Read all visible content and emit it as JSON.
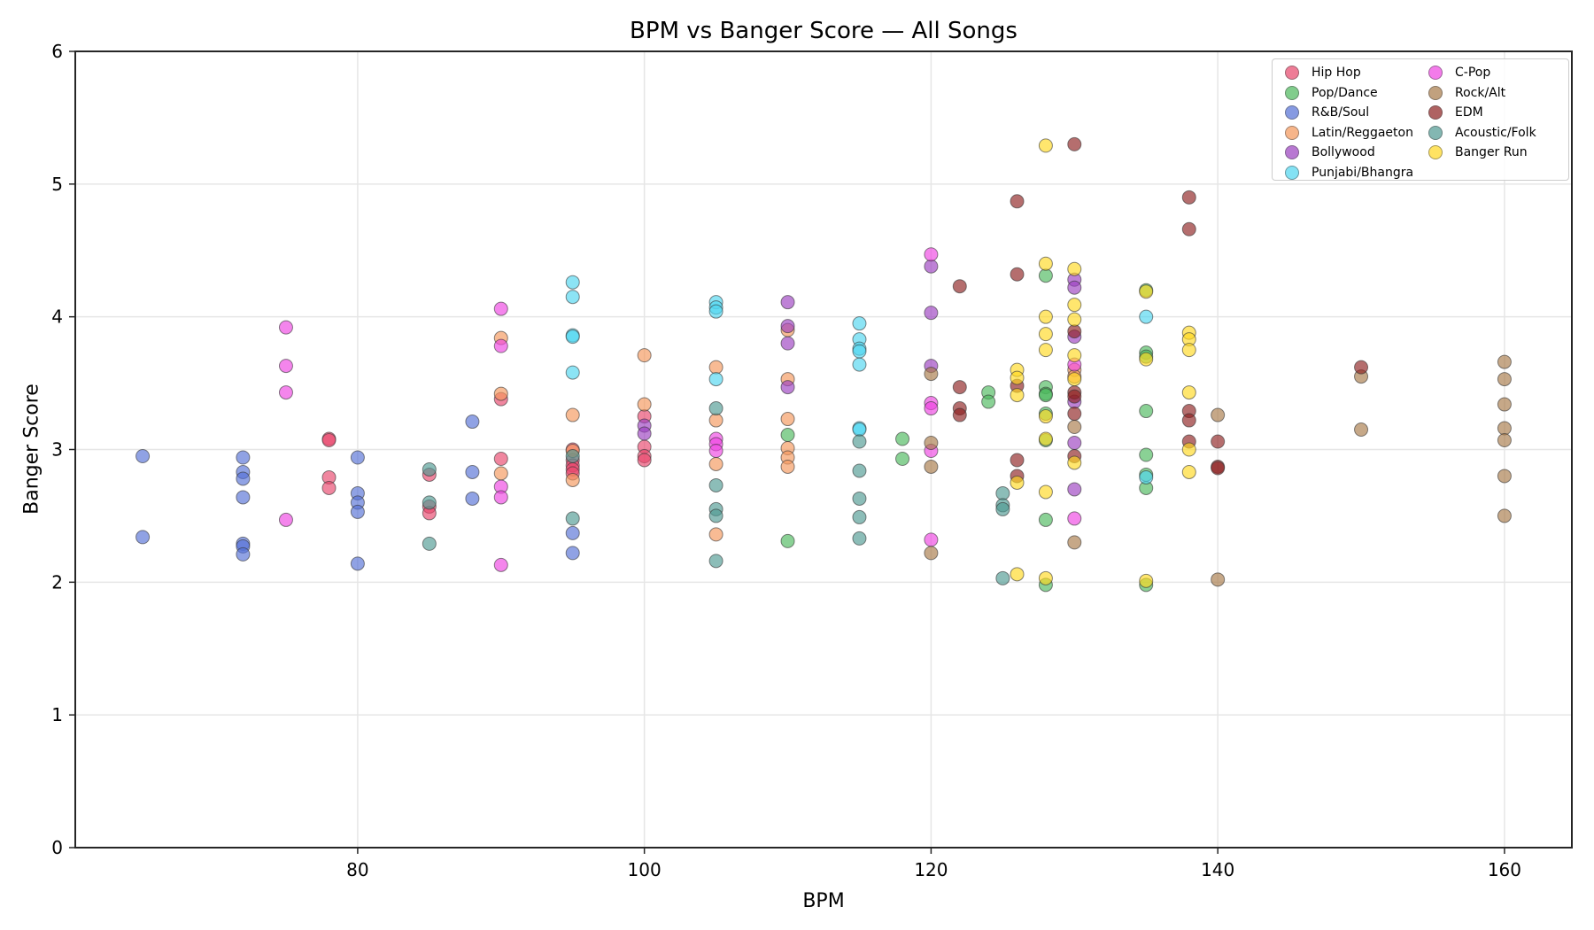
{
  "chart_data": {
    "type": "scatter",
    "title": "BPM vs Banger Score — All Songs",
    "xlabel": "BPM",
    "ylabel": "Banger Score",
    "xlim": [
      60.3,
      164.7
    ],
    "ylim": [
      0,
      6
    ],
    "xticks": [
      80,
      100,
      120,
      140,
      160
    ],
    "yticks": [
      0,
      1,
      2,
      3,
      4,
      5,
      6
    ],
    "grid": true,
    "legend_position": "upper right",
    "legend_columns": 2,
    "series": [
      {
        "name": "Hip Hop",
        "color": "#e8456b",
        "points": [
          [
            78,
            3.08
          ],
          [
            78,
            3.07
          ],
          [
            78,
            2.79
          ],
          [
            78,
            2.71
          ],
          [
            85,
            2.81
          ],
          [
            85,
            2.57
          ],
          [
            85,
            2.52
          ],
          [
            90,
            3.38
          ],
          [
            90,
            2.93
          ],
          [
            95,
            3.0
          ],
          [
            95,
            2.92
          ],
          [
            95,
            2.88
          ],
          [
            95,
            2.85
          ],
          [
            95,
            2.82
          ],
          [
            100,
            3.25
          ],
          [
            100,
            3.02
          ],
          [
            100,
            2.95
          ],
          [
            100,
            2.92
          ]
        ]
      },
      {
        "name": "Pop/Dance",
        "color": "#4cb85c",
        "points": [
          [
            110,
            3.11
          ],
          [
            110,
            2.31
          ],
          [
            118,
            3.08
          ],
          [
            118,
            2.93
          ],
          [
            124,
            3.43
          ],
          [
            124,
            3.36
          ],
          [
            128,
            4.31
          ],
          [
            128,
            3.47
          ],
          [
            128,
            3.42
          ],
          [
            128,
            3.41
          ],
          [
            128,
            3.27
          ],
          [
            128,
            3.07
          ],
          [
            128,
            2.47
          ],
          [
            128,
            1.98
          ],
          [
            135,
            4.2
          ],
          [
            135,
            3.73
          ],
          [
            135,
            3.7
          ],
          [
            135,
            3.29
          ],
          [
            135,
            2.96
          ],
          [
            135,
            2.81
          ],
          [
            135,
            2.71
          ],
          [
            135,
            1.98
          ]
        ]
      },
      {
        "name": "R&B/Soul",
        "color": "#5470d6",
        "points": [
          [
            65,
            2.95
          ],
          [
            65,
            2.34
          ],
          [
            72,
            2.94
          ],
          [
            72,
            2.83
          ],
          [
            72,
            2.78
          ],
          [
            72,
            2.64
          ],
          [
            72,
            2.29
          ],
          [
            72,
            2.27
          ],
          [
            72,
            2.21
          ],
          [
            80,
            2.94
          ],
          [
            80,
            2.67
          ],
          [
            80,
            2.6
          ],
          [
            80,
            2.53
          ],
          [
            80,
            2.14
          ],
          [
            88,
            3.21
          ],
          [
            88,
            2.83
          ],
          [
            88,
            2.63
          ],
          [
            95,
            2.37
          ],
          [
            95,
            2.22
          ]
        ]
      },
      {
        "name": "Latin/Reggaeton",
        "color": "#f4975a",
        "points": [
          [
            90,
            3.84
          ],
          [
            90,
            3.42
          ],
          [
            90,
            2.82
          ],
          [
            95,
            3.26
          ],
          [
            95,
            2.99
          ],
          [
            95,
            2.77
          ],
          [
            100,
            3.71
          ],
          [
            100,
            3.34
          ],
          [
            105,
            3.62
          ],
          [
            105,
            3.22
          ],
          [
            105,
            2.89
          ],
          [
            105,
            2.36
          ],
          [
            110,
            3.9
          ],
          [
            110,
            3.53
          ],
          [
            110,
            3.23
          ],
          [
            110,
            3.01
          ],
          [
            110,
            2.94
          ],
          [
            110,
            2.87
          ],
          [
            130,
            3.6
          ],
          [
            130,
            3.55
          ]
        ]
      },
      {
        "name": "Bollywood",
        "color": "#9b3fc0",
        "points": [
          [
            100,
            3.18
          ],
          [
            100,
            3.12
          ],
          [
            110,
            4.11
          ],
          [
            110,
            3.93
          ],
          [
            110,
            3.8
          ],
          [
            110,
            3.47
          ],
          [
            120,
            4.38
          ],
          [
            120,
            4.03
          ],
          [
            120,
            3.63
          ],
          [
            130,
            4.28
          ],
          [
            130,
            4.22
          ],
          [
            130,
            3.85
          ],
          [
            130,
            3.36
          ],
          [
            130,
            3.05
          ],
          [
            130,
            2.7
          ]
        ]
      },
      {
        "name": "Punjabi/Bhangra",
        "color": "#4fd6f0",
        "points": [
          [
            95,
            4.26
          ],
          [
            95,
            4.15
          ],
          [
            95,
            3.86
          ],
          [
            95,
            3.85
          ],
          [
            95,
            3.58
          ],
          [
            105,
            4.11
          ],
          [
            105,
            4.07
          ],
          [
            105,
            4.04
          ],
          [
            105,
            3.53
          ],
          [
            115,
            3.95
          ],
          [
            115,
            3.83
          ],
          [
            115,
            3.76
          ],
          [
            115,
            3.74
          ],
          [
            115,
            3.64
          ],
          [
            115,
            3.16
          ],
          [
            115,
            3.15
          ],
          [
            135,
            4.0
          ],
          [
            135,
            2.79
          ]
        ]
      },
      {
        "name": "C-Pop",
        "color": "#ee44e2",
        "points": [
          [
            75,
            3.92
          ],
          [
            75,
            3.63
          ],
          [
            75,
            3.43
          ],
          [
            75,
            2.47
          ],
          [
            90,
            4.06
          ],
          [
            90,
            3.78
          ],
          [
            90,
            2.72
          ],
          [
            90,
            2.64
          ],
          [
            90,
            2.13
          ],
          [
            105,
            3.08
          ],
          [
            105,
            3.04
          ],
          [
            105,
            2.99
          ],
          [
            120,
            4.47
          ],
          [
            120,
            3.35
          ],
          [
            120,
            3.31
          ],
          [
            120,
            2.99
          ],
          [
            120,
            2.32
          ],
          [
            130,
            3.64
          ],
          [
            130,
            2.48
          ]
        ]
      },
      {
        "name": "Rock/Alt",
        "color": "#a87a48",
        "points": [
          [
            120,
            3.57
          ],
          [
            120,
            3.05
          ],
          [
            120,
            2.87
          ],
          [
            120,
            2.22
          ],
          [
            130,
            3.17
          ],
          [
            130,
            2.3
          ],
          [
            140,
            3.26
          ],
          [
            140,
            2.02
          ],
          [
            150,
            3.55
          ],
          [
            150,
            3.15
          ],
          [
            160,
            3.66
          ],
          [
            160,
            3.53
          ],
          [
            160,
            3.34
          ],
          [
            160,
            3.16
          ],
          [
            160,
            3.07
          ],
          [
            160,
            2.8
          ],
          [
            160,
            2.5
          ]
        ]
      },
      {
        "name": "EDM",
        "color": "#8e2020",
        "points": [
          [
            122,
            4.23
          ],
          [
            122,
            3.47
          ],
          [
            122,
            3.31
          ],
          [
            122,
            3.26
          ],
          [
            126,
            4.87
          ],
          [
            126,
            4.32
          ],
          [
            126,
            3.48
          ],
          [
            126,
            2.92
          ],
          [
            126,
            2.8
          ],
          [
            130,
            5.3
          ],
          [
            130,
            3.89
          ],
          [
            130,
            3.43
          ],
          [
            130,
            3.4
          ],
          [
            130,
            3.27
          ],
          [
            130,
            2.95
          ],
          [
            138,
            4.9
          ],
          [
            138,
            4.66
          ],
          [
            138,
            3.29
          ],
          [
            138,
            3.22
          ],
          [
            138,
            3.06
          ],
          [
            140,
            3.06
          ],
          [
            140,
            2.87
          ],
          [
            140,
            2.86
          ],
          [
            150,
            3.62
          ]
        ]
      },
      {
        "name": "Acoustic/Folk",
        "color": "#4f9a92",
        "points": [
          [
            85,
            2.85
          ],
          [
            85,
            2.6
          ],
          [
            85,
            2.29
          ],
          [
            95,
            2.95
          ],
          [
            95,
            2.48
          ],
          [
            105,
            3.31
          ],
          [
            105,
            2.73
          ],
          [
            105,
            2.55
          ],
          [
            105,
            2.5
          ],
          [
            105,
            2.16
          ],
          [
            115,
            3.06
          ],
          [
            115,
            2.84
          ],
          [
            115,
            2.63
          ],
          [
            115,
            2.49
          ],
          [
            115,
            2.33
          ],
          [
            125,
            2.67
          ],
          [
            125,
            2.58
          ],
          [
            125,
            2.55
          ],
          [
            125,
            2.03
          ]
        ]
      },
      {
        "name": "Banger Run",
        "color": "#ffd820",
        "points": [
          [
            126,
            3.6
          ],
          [
            126,
            3.54
          ],
          [
            126,
            3.41
          ],
          [
            126,
            2.75
          ],
          [
            126,
            2.06
          ],
          [
            128,
            5.29
          ],
          [
            128,
            4.4
          ],
          [
            128,
            4.0
          ],
          [
            128,
            3.87
          ],
          [
            128,
            3.75
          ],
          [
            128,
            3.25
          ],
          [
            128,
            3.08
          ],
          [
            128,
            2.68
          ],
          [
            128,
            2.03
          ],
          [
            130,
            4.36
          ],
          [
            130,
            4.09
          ],
          [
            130,
            3.98
          ],
          [
            130,
            3.71
          ],
          [
            130,
            3.53
          ],
          [
            130,
            2.9
          ],
          [
            135,
            4.19
          ],
          [
            135,
            3.68
          ],
          [
            135,
            2.01
          ],
          [
            138,
            3.88
          ],
          [
            138,
            3.83
          ],
          [
            138,
            3.75
          ],
          [
            138,
            3.43
          ],
          [
            138,
            3.0
          ],
          [
            138,
            2.83
          ]
        ]
      }
    ]
  }
}
